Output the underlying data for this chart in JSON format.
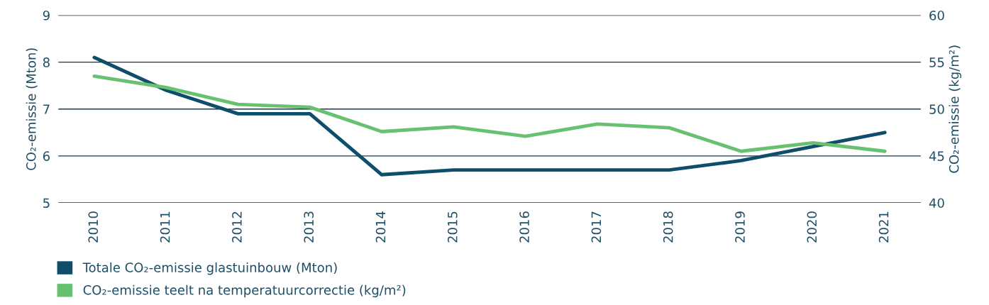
{
  "chart_data": {
    "type": "line",
    "categories": [
      "2010",
      "2011",
      "2012",
      "2013",
      "2014",
      "2015",
      "2016",
      "2017",
      "2018",
      "2019",
      "2020",
      "2021"
    ],
    "series": [
      {
        "name": "Totale CO₂-emissie glastuinbouw (Mton)",
        "color": "#0f4e6b",
        "values": [
          8.1,
          7.4,
          6.9,
          6.9,
          5.6,
          5.7,
          5.7,
          5.7,
          5.7,
          5.9,
          6.2,
          6.5
        ]
      },
      {
        "name": "CO₂-emissie teelt na temperatuurcorrectie (kg/m²)",
        "color": "#68c171",
        "axis": "y2",
        "values": [
          53.5,
          52.3,
          50.5,
          50.2,
          47.6,
          48.1,
          47.1,
          48.4,
          48.0,
          45.5,
          46.4,
          45.5
        ]
      }
    ],
    "ylabel": "CO₂-emissie (Mton)",
    "y2label": "CO₂-emissie (kg/m²)",
    "ylim": [
      5,
      9
    ],
    "yticks": [
      5,
      6,
      7,
      8,
      9
    ],
    "y2lim": [
      40,
      60
    ],
    "y2ticks": [
      40,
      45,
      50,
      55,
      60
    ],
    "grid": "y",
    "legend": "bottom",
    "marker": "none",
    "line_style": "solid"
  }
}
